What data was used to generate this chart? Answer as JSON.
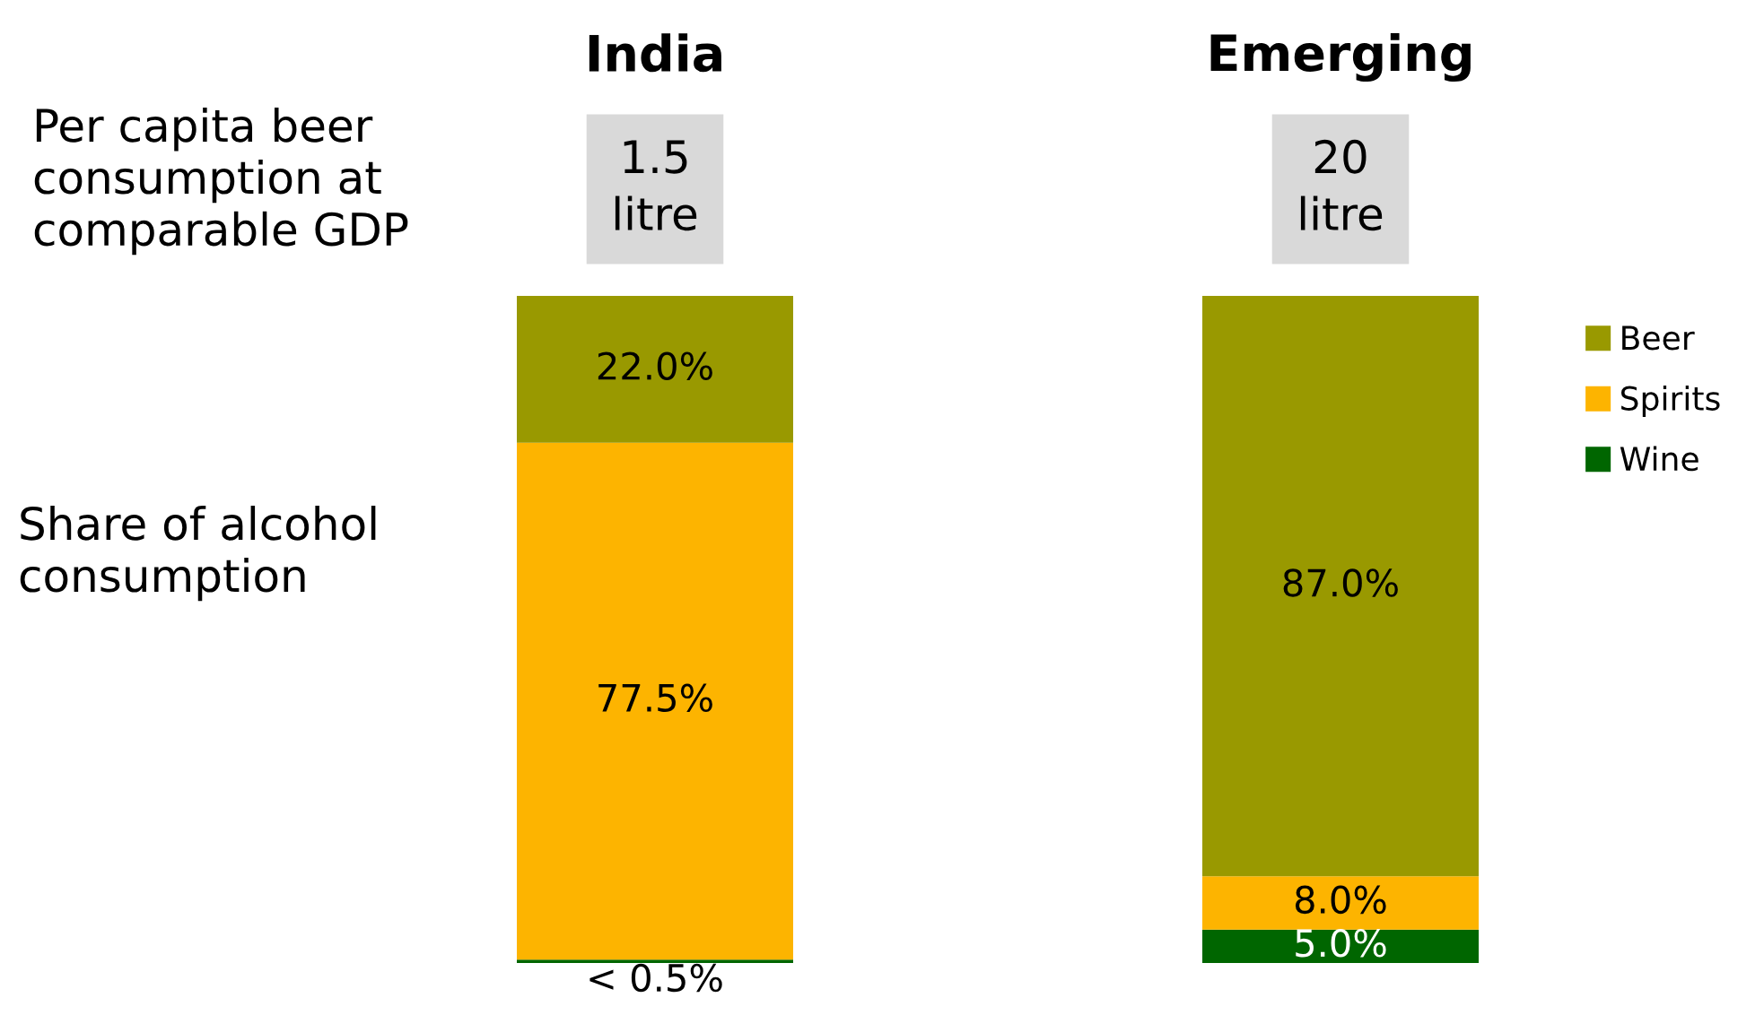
{
  "chart_data": {
    "type": "bar",
    "stacked": true,
    "categories": [
      "India",
      "Emerging"
    ],
    "series": [
      {
        "name": "Wine",
        "color": "#006600",
        "values": [
          0.5,
          5.0
        ],
        "value_labels": [
          "< 0.5%",
          "5.0%"
        ]
      },
      {
        "name": "Spirits",
        "color": "#fdb400",
        "values": [
          77.5,
          8.0
        ],
        "value_labels": [
          "77.5%",
          "8.0%"
        ]
      },
      {
        "name": "Beer",
        "color": "#999900",
        "values": [
          22.0,
          87.0
        ],
        "value_labels": [
          "22.0%",
          "87.0%"
        ]
      }
    ],
    "legend": "right",
    "annotations": [
      "Per capita beer\nconsumption at\ncomparable GDP",
      "Share of alcohol\nconsumption",
      "1.5\nlitre",
      "20\nlitre"
    ]
  }
}
